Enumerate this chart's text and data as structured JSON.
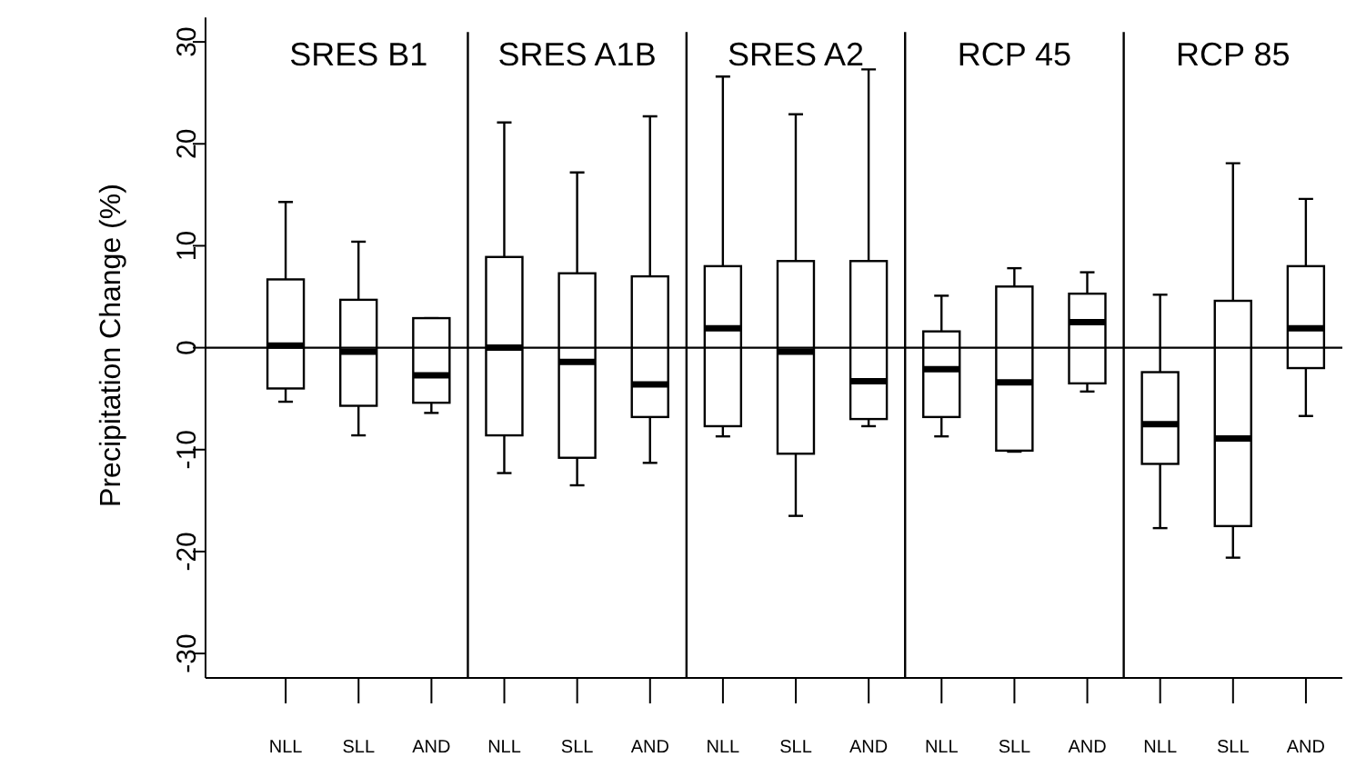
{
  "chart_data": {
    "type": "box",
    "ylabel": "Precipitation Change (%)",
    "categories": [
      "NLL",
      "SLL",
      "AND",
      "NLL",
      "SLL",
      "AND",
      "NLL",
      "SLL",
      "AND",
      "NLL",
      "SLL",
      "AND",
      "NLL",
      "SLL",
      "AND"
    ],
    "annotations": [
      "SRES B1",
      "SRES A1B",
      "SRES A2",
      "RCP 45",
      "RCP 85"
    ],
    "boxes": [
      {
        "low": -5.3,
        "q1": -4.0,
        "median": 0.2,
        "q3": 6.7,
        "high": 14.3
      },
      {
        "low": -8.6,
        "q1": -5.7,
        "median": -0.4,
        "q3": 4.7,
        "high": 10.4
      },
      {
        "low": -6.4,
        "q1": -5.4,
        "median": -2.7,
        "q3": 2.9,
        "high": 2.9
      },
      {
        "low": -12.3,
        "q1": -8.6,
        "median": 0.0,
        "q3": 8.9,
        "high": 22.1
      },
      {
        "low": -13.5,
        "q1": -10.8,
        "median": -1.4,
        "q3": 7.3,
        "high": 17.2
      },
      {
        "low": -11.3,
        "q1": -6.8,
        "median": -3.6,
        "q3": 7.0,
        "high": 22.7
      },
      {
        "low": -8.7,
        "q1": -7.7,
        "median": 1.9,
        "q3": 8.0,
        "high": 26.6
      },
      {
        "low": -16.5,
        "q1": -10.4,
        "median": -0.4,
        "q3": 8.5,
        "high": 22.9
      },
      {
        "low": -7.7,
        "q1": -7.0,
        "median": -3.3,
        "q3": 8.5,
        "high": 27.3
      },
      {
        "low": -8.7,
        "q1": -6.8,
        "median": -2.1,
        "q3": 1.6,
        "high": 5.1
      },
      {
        "low": -10.2,
        "q1": -10.1,
        "median": -3.4,
        "q3": 6.0,
        "high": 7.8
      },
      {
        "low": -4.3,
        "q1": -3.5,
        "median": 2.5,
        "q3": 5.3,
        "high": 7.4
      },
      {
        "low": -17.7,
        "q1": -11.4,
        "median": -7.5,
        "q3": -2.4,
        "high": 5.2
      },
      {
        "low": -20.6,
        "q1": -17.5,
        "median": -8.9,
        "q3": 4.6,
        "high": 18.1
      },
      {
        "low": -6.7,
        "q1": -2.0,
        "median": 1.9,
        "q3": 8.0,
        "high": 14.6
      }
    ],
    "ylim": [
      -32.4,
      32.4
    ],
    "yticks": [
      -30,
      -20,
      -10,
      0,
      10,
      20,
      30
    ],
    "ref_lines": [
      {
        "axis": "y",
        "value": 0
      }
    ]
  }
}
